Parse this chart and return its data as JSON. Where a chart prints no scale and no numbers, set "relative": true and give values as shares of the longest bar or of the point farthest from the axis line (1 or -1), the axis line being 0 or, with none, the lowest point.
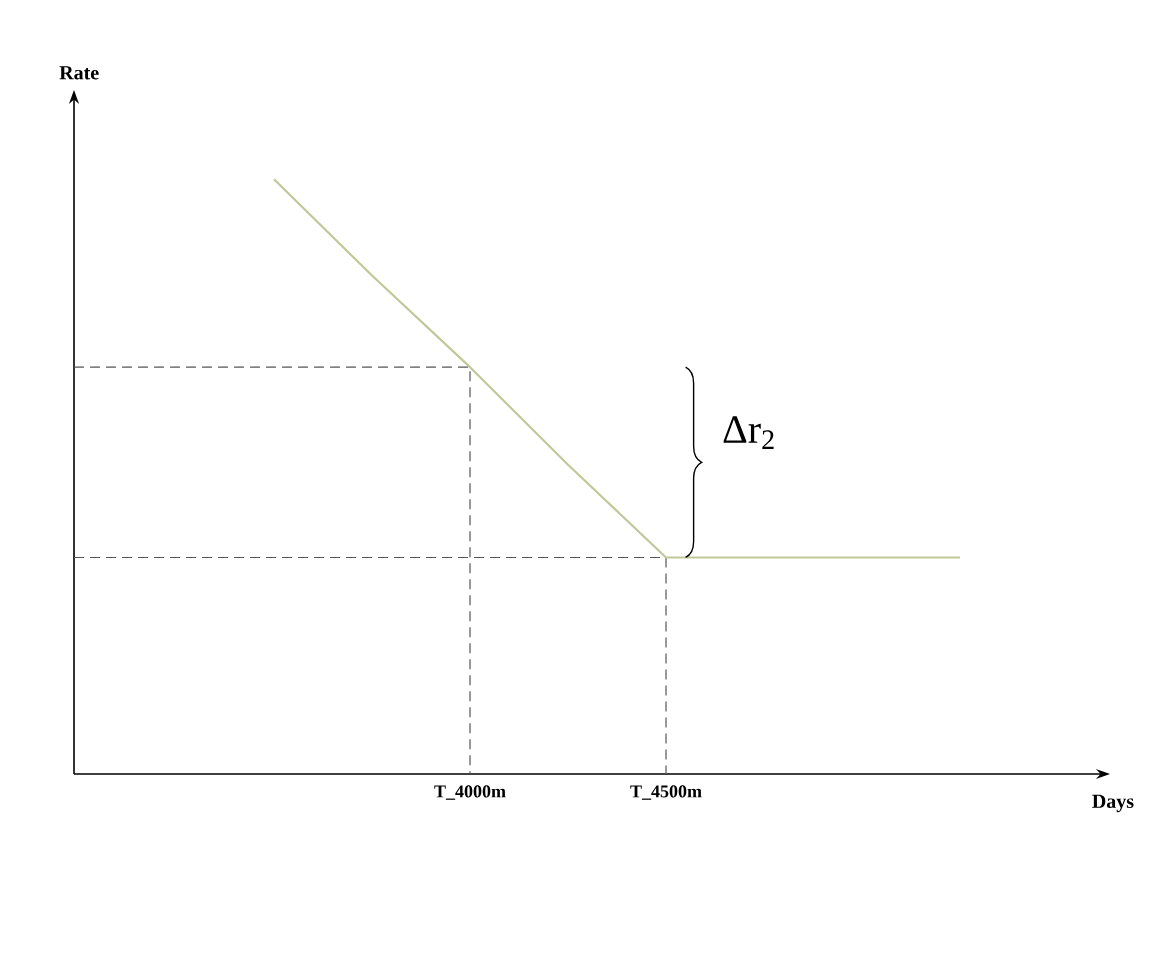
{
  "chart_data": {
    "type": "line",
    "relative": true,
    "xlabel": "Days",
    "categories": [
      null,
      null,
      "T_4000m",
      null,
      "T_4500m",
      null,
      null,
      null
    ],
    "series": [
      {
        "color": "#c2c79a",
        "values": [
          1,
          0.838,
          0.684,
          0.52,
          0.364,
          0.364,
          0.364,
          0.364
        ]
      }
    ],
    "ref_lines": [
      {
        "axis": "y",
        "value": 0.684,
        "color": "#555555",
        "line_style": "dashed"
      },
      {
        "axis": "y",
        "value": 0.364,
        "color": "#555555",
        "line_style": "dashed"
      }
    ],
    "annotations": [
      "Rate",
      "Δr$_{2}$"
    ],
    "marker": "none",
    "line_style": "solid"
  }
}
